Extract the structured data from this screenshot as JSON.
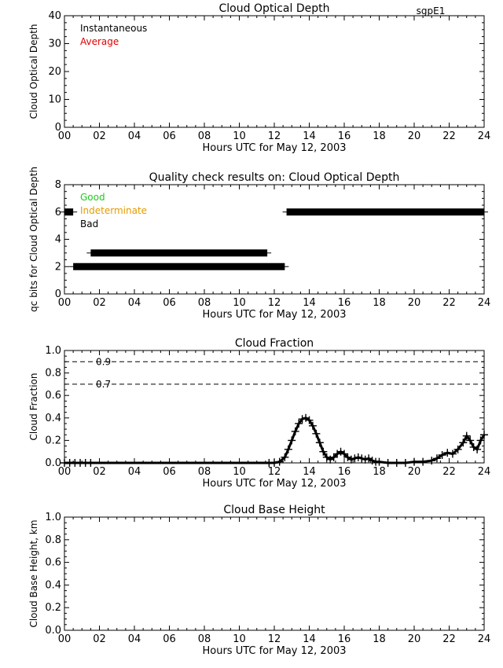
{
  "site": "sgpE1",
  "colors": {
    "good": "#22c922",
    "indeterminate": "#e69b00",
    "bad": "#000000",
    "average": "#e00000",
    "axis": "#000000"
  },
  "chart_data": [
    {
      "type": "line",
      "title": "Cloud Optical Depth",
      "xlabel": "Hours UTC for May 12, 2003",
      "ylabel": "Cloud Optical Depth",
      "xlim": [
        0,
        24
      ],
      "ylim": [
        0,
        40
      ],
      "x_ticks": [
        "00",
        "02",
        "04",
        "06",
        "08",
        "10",
        "12",
        "14",
        "16",
        "18",
        "20",
        "22",
        "24"
      ],
      "y_ticks": [
        "0",
        "10",
        "20",
        "30",
        "40"
      ],
      "legend": [
        {
          "label": "Instantaneous",
          "color": "#000000"
        },
        {
          "label": "Average",
          "color": "#e00000"
        }
      ],
      "legend_placement": "top-left",
      "series": []
    },
    {
      "type": "bar",
      "title": "Quality check results on: Cloud Optical Depth",
      "xlabel": "Hours UTC for May 12, 2003",
      "ylabel": "qc bits for Cloud Optical Depth",
      "xlim": [
        0,
        24
      ],
      "ylim": [
        0,
        8
      ],
      "x_ticks": [
        "00",
        "02",
        "04",
        "06",
        "08",
        "10",
        "12",
        "14",
        "16",
        "18",
        "20",
        "22",
        "24"
      ],
      "y_ticks": [
        "0",
        "2",
        "4",
        "6",
        "8"
      ],
      "legend": [
        {
          "label": "Good",
          "color": "#22c922"
        },
        {
          "label": "Indeterminate",
          "color": "#e69b00"
        },
        {
          "label": "Bad",
          "color": "#000000"
        }
      ],
      "legend_placement": "top-left",
      "segments": [
        {
          "bit": 6,
          "start": 0.0,
          "end": 0.5
        },
        {
          "bit": 6,
          "start": 12.7,
          "end": 24.0
        },
        {
          "bit": 3,
          "start": 1.5,
          "end": 11.6
        },
        {
          "bit": 2,
          "start": 0.5,
          "end": 12.6
        }
      ]
    },
    {
      "type": "scatter",
      "title": "Cloud Fraction",
      "xlabel": "Hours UTC for May 12, 2003",
      "ylabel": "Cloud Fraction",
      "xlim": [
        0,
        24
      ],
      "ylim": [
        0,
        1.0
      ],
      "x_ticks": [
        "00",
        "02",
        "04",
        "06",
        "08",
        "10",
        "12",
        "14",
        "16",
        "18",
        "20",
        "22",
        "24"
      ],
      "y_ticks": [
        "0.0",
        "0.2",
        "0.4",
        "0.6",
        "0.8",
        "1.0"
      ],
      "reference_lines": [
        {
          "value": 0.9,
          "label": "0.9"
        },
        {
          "value": 0.7,
          "label": "0.7"
        }
      ],
      "x": [
        0.0,
        0.3,
        0.6,
        0.9,
        1.2,
        1.5,
        11.7,
        12.0,
        12.3,
        12.6,
        12.8,
        13.0,
        13.2,
        13.4,
        13.6,
        13.8,
        14.0,
        14.2,
        14.4,
        14.6,
        14.8,
        15.0,
        15.2,
        15.4,
        15.6,
        15.8,
        16.0,
        16.2,
        16.4,
        16.6,
        16.8,
        17.0,
        17.2,
        17.4,
        17.6,
        17.8,
        18.0,
        18.5,
        19.0,
        19.5,
        20.0,
        20.5,
        21.0,
        21.3,
        21.6,
        21.9,
        22.2,
        22.5,
        22.8,
        23.0,
        23.2,
        23.4,
        23.6,
        23.8,
        24.0
      ],
      "y": [
        0.0,
        0.0,
        0.0,
        0.0,
        0.0,
        0.0,
        0.0,
        0.0,
        0.01,
        0.05,
        0.12,
        0.2,
        0.28,
        0.35,
        0.39,
        0.4,
        0.38,
        0.33,
        0.26,
        0.18,
        0.1,
        0.05,
        0.03,
        0.05,
        0.08,
        0.1,
        0.08,
        0.05,
        0.03,
        0.04,
        0.05,
        0.04,
        0.03,
        0.04,
        0.02,
        0.01,
        0.01,
        0.0,
        0.0,
        0.0,
        0.01,
        0.01,
        0.02,
        0.04,
        0.07,
        0.09,
        0.08,
        0.12,
        0.18,
        0.24,
        0.2,
        0.14,
        0.12,
        0.2,
        0.25
      ],
      "series": []
    },
    {
      "type": "line",
      "title": "Cloud Base Height",
      "xlabel": "Hours UTC for May 12, 2003",
      "ylabel": "Cloud Base Height, km",
      "xlim": [
        0,
        24
      ],
      "ylim": [
        0,
        1.0
      ],
      "x_ticks": [
        "00",
        "02",
        "04",
        "06",
        "08",
        "10",
        "12",
        "14",
        "16",
        "18",
        "20",
        "22",
        "24"
      ],
      "y_ticks": [
        "0.0",
        "0.2",
        "0.4",
        "0.6",
        "0.8",
        "1.0"
      ],
      "series": []
    }
  ]
}
